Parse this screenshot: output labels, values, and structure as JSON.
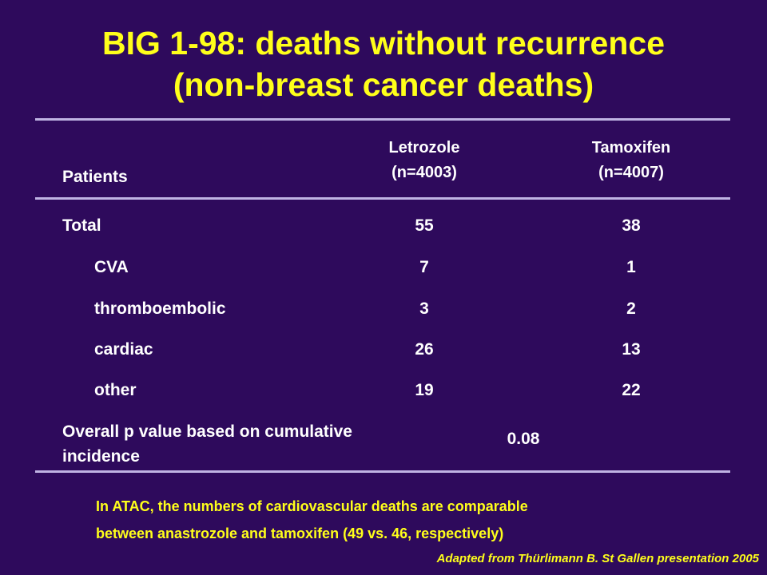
{
  "title": {
    "line1": "BIG 1-98: deaths without recurrence",
    "line2": "(non-breast cancer deaths)"
  },
  "table": {
    "header": {
      "patients": "Patients",
      "letrozole_name": "Letrozole",
      "letrozole_n": "(n=4003)",
      "tamoxifen_name": "Tamoxifen",
      "tamoxifen_n": "(n=4007)"
    },
    "rows": [
      {
        "label": "Total",
        "letrozole": "55",
        "tamoxifen": "38"
      },
      {
        "label": "CVA",
        "letrozole": "7",
        "tamoxifen": "1"
      },
      {
        "label": "thromboembolic",
        "letrozole": "3",
        "tamoxifen": "2"
      },
      {
        "label": "cardiac",
        "letrozole": "26",
        "tamoxifen": "13"
      },
      {
        "label": "other",
        "letrozole": "19",
        "tamoxifen": "22"
      }
    ],
    "pvalue": {
      "label_line1": "Overall p value based on cumulative",
      "label_line2": "incidence",
      "value": "0.08"
    }
  },
  "note": {
    "line1": "In ATAC, the numbers of cardiovascular deaths are comparable",
    "line2": "between anastrozole and tamoxifen (49 vs. 46, respectively)"
  },
  "credit": "Adapted from Thürlimann B. St Gallen presentation 2005",
  "colors": {
    "background": "#2e0a5c",
    "title": "#ffff1a",
    "body_text": "#ffffff",
    "rule": "#bfb3e3"
  }
}
